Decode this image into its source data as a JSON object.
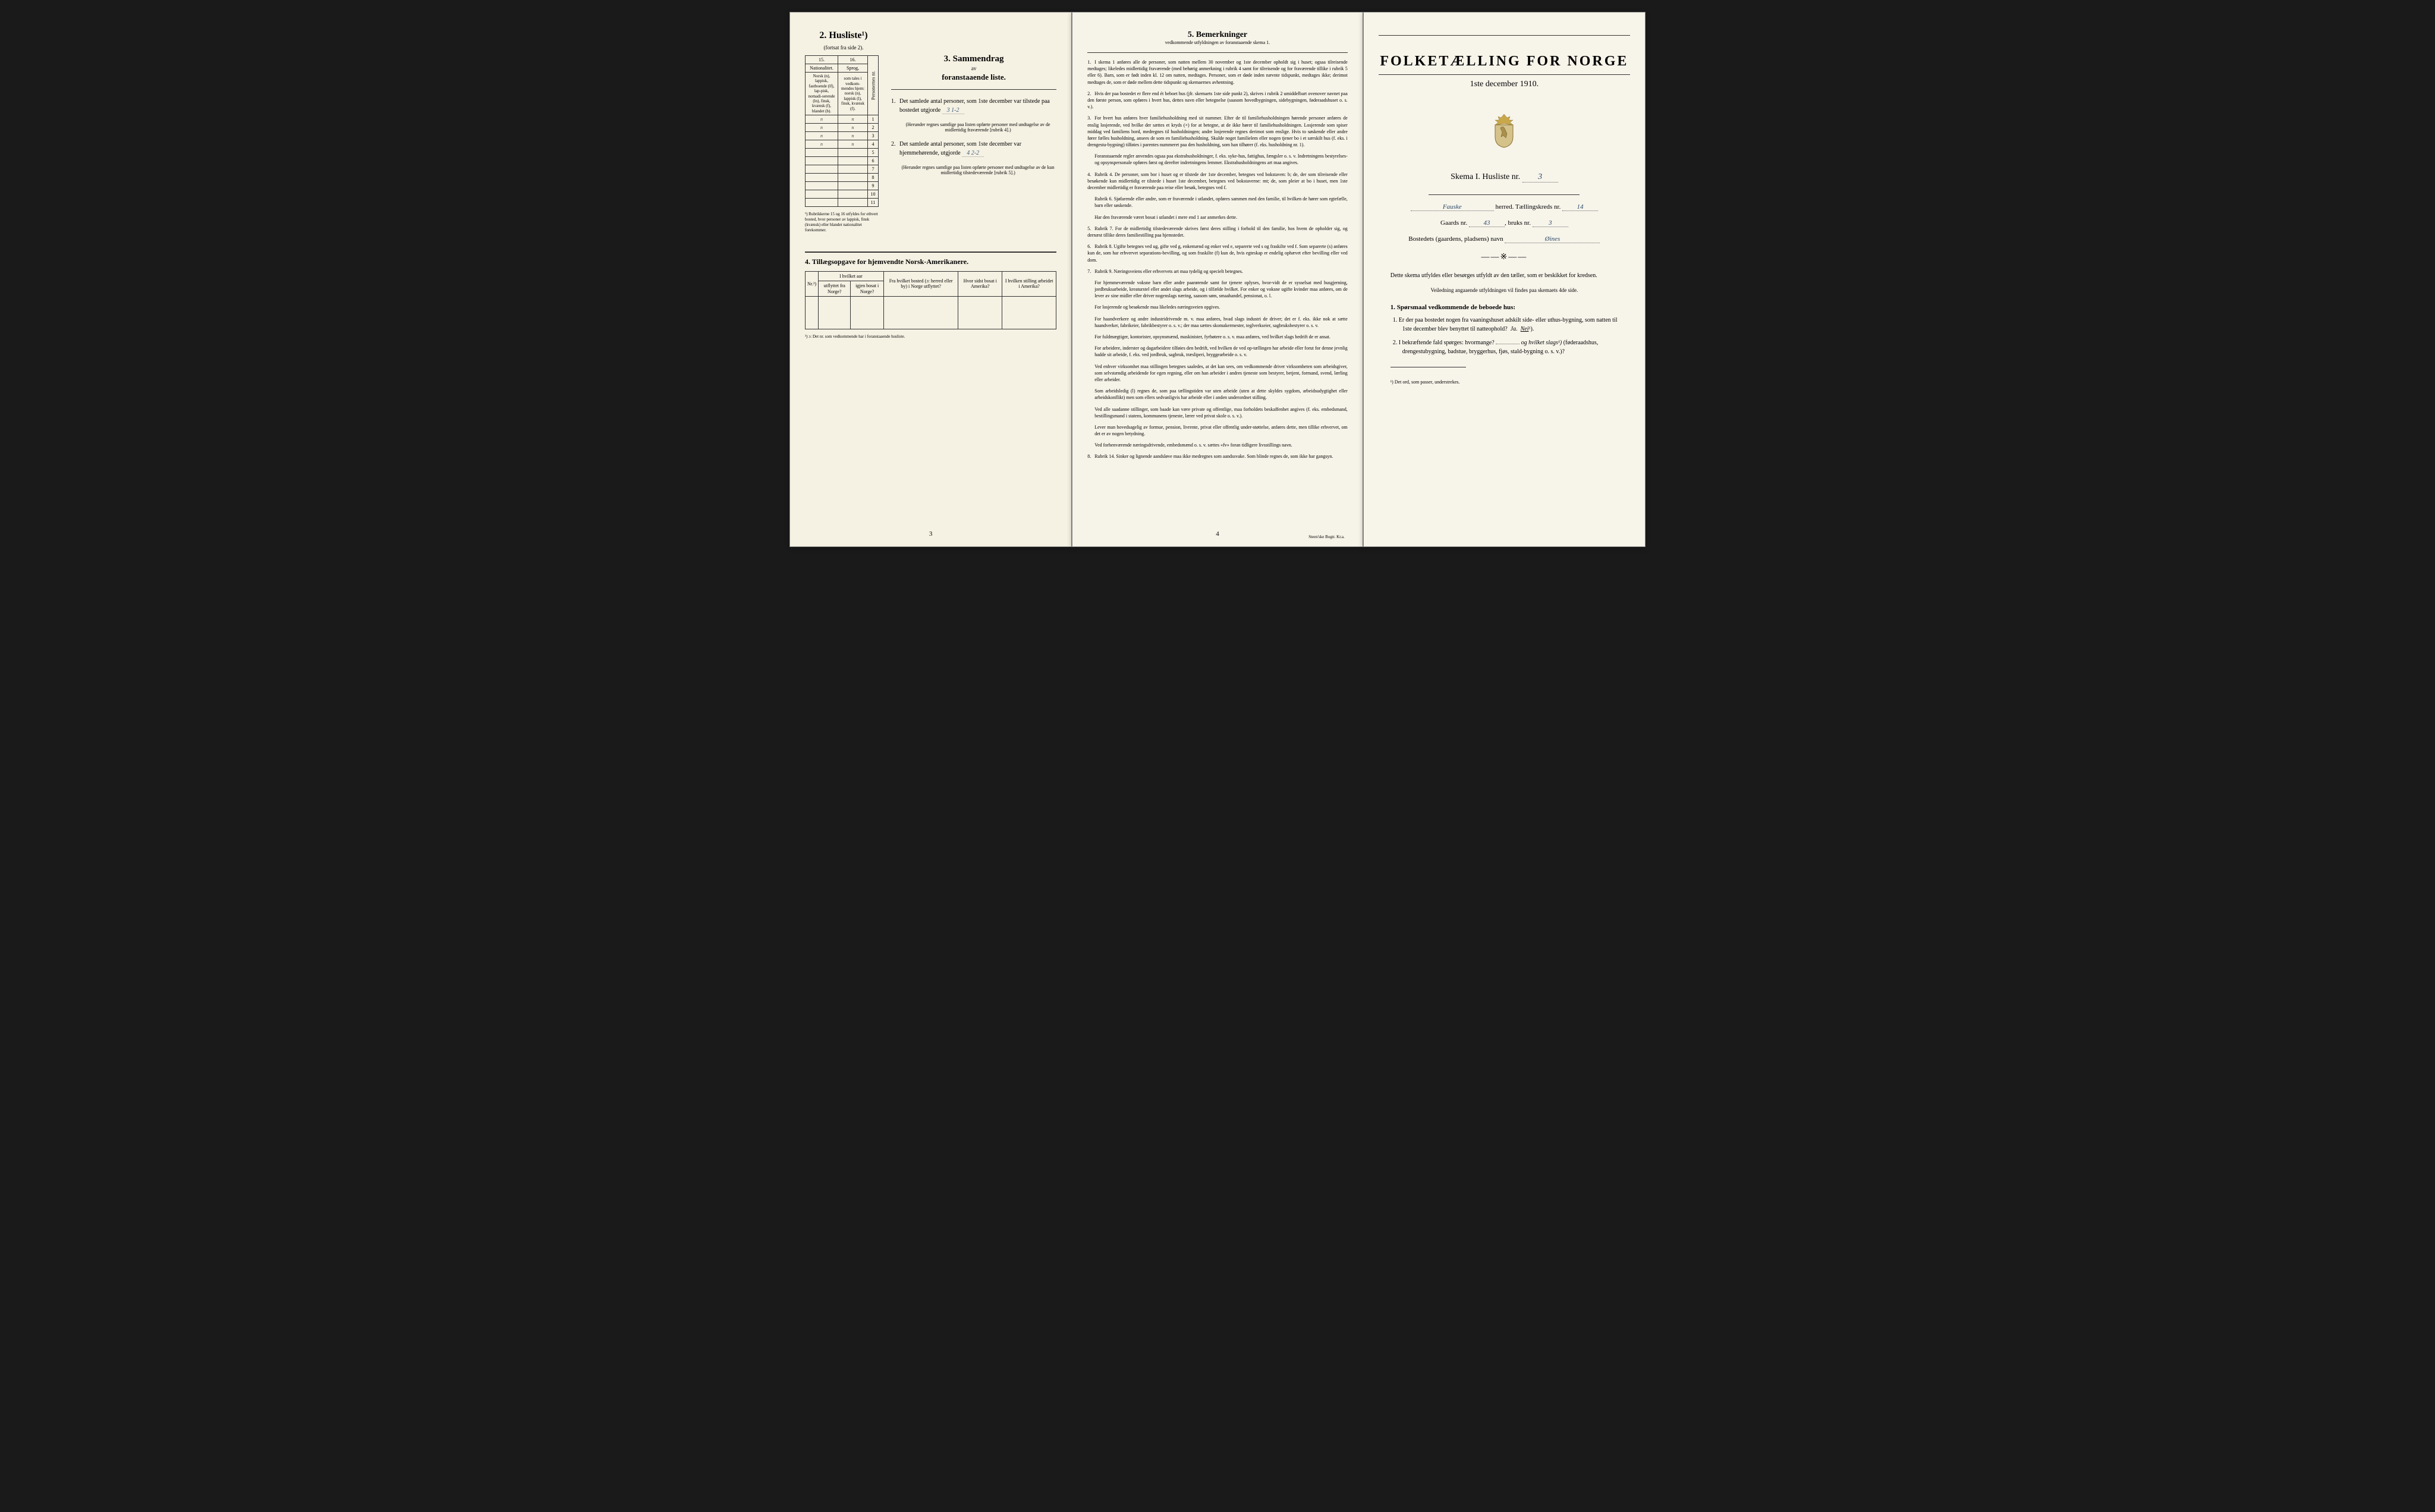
{
  "page1": {
    "section2_title": "2.  Husliste¹)",
    "section2_sub": "(fortsat fra side 2).",
    "col15": "15.",
    "col16": "16.",
    "nat_header": "Nationalitet.",
    "sprog_header": "Sprog,",
    "nat_text": "Norsk (n), lappisk, fastboende (lf), lap-pisk, nomadi-serende (ln), finsk, kvænsk (f), blandet (b).",
    "sprog_text": "som tales i vedkom-mendes hjem: norsk (n), lappisk (l), finsk, kvænsk (f).",
    "pers_label": "Personernes nr.",
    "cells": [
      {
        "c1": "n",
        "c2": "n",
        "num": "1"
      },
      {
        "c1": "n",
        "c2": "n",
        "num": "2"
      },
      {
        "c1": "n",
        "c2": "n",
        "num": "3"
      },
      {
        "c1": "n",
        "c2": "n",
        "num": "4"
      },
      {
        "c1": "",
        "c2": "",
        "num": "5"
      },
      {
        "c1": "",
        "c2": "",
        "num": "6"
      },
      {
        "c1": "",
        "c2": "",
        "num": "7"
      },
      {
        "c1": "",
        "c2": "",
        "num": "8"
      },
      {
        "c1": "",
        "c2": "",
        "num": "9"
      },
      {
        "c1": "",
        "c2": "",
        "num": "10"
      },
      {
        "c1": "",
        "c2": "",
        "num": "11"
      }
    ],
    "footnote1": "¹) Rubrikkerne 15 og 16 utfyldes for ethvert bosted, hvor personer av lappisk, finsk (kvænsk) eller blandet nationalitet forekommer.",
    "section3_title": "3.  Sammendrag",
    "section3_av": "av",
    "section3_sub": "foranstaaende liste.",
    "item1_text": "Det samlede antal personer, som 1ste december var tilstede paa bostedet utgjorde",
    "item1_value": "3 1-2",
    "item1_note": "(Herunder regnes samtlige paa listen opførte personer med undtagelse av de midlertidig fraværende [rubrik 4].)",
    "item2_text": "Det samlede antal personer, som 1ste december var hjemmehørende, utgjorde",
    "item2_value": "4 2-2",
    "item2_note": "(Herunder regnes samtlige paa listen opførte personer med undtagelse av de kun midlertidig tilstedeværende [rubrik 5].)",
    "section4_title": "4.  Tillægsopgave for hjemvendte Norsk-Amerikanere.",
    "t_cols": [
      "Nr.²)",
      "I hvilket aar",
      "Fra hvilket bosted (ɔ: herred eller by) i Norge utflyttet?",
      "Hvor sidst bosat i Amerika?",
      "I hvilken stilling arbeidet i Amerika?"
    ],
    "t_subcols": [
      "utflyttet fra Norge?",
      "igjen bosat i Norge?"
    ],
    "footnote2": "²) ɔ: Det nr. som vedkommende har i foranstaaende husliste.",
    "page_num": "3"
  },
  "page2": {
    "title": "5.  Bemerkninger",
    "sub": "vedkommende utfyldningen av foranstaaende skema 1.",
    "rules": [
      "I skema 1 anføres alle de personer, som natten mellem 30 november og 1ste december opholdt sig i huset; ogsaa tilreisende medtages; likeledes midlertidig fraværende (med behørig anmerkning i rubrik 4 samt for tilreisende og for fraværende tillike i rubrik 5 eller 6). Barn, som er født inden kl. 12 om natten, medtages. Personer, som er døde inden nævnte tidspunkt, medtages ikke; derimot medtages de, som er døde mellem dette tidspunkt og skemaernes avhentning.",
      "Hvis der paa bostedet er flere end ét beboet hus (jfr. skemaets 1ste side punkt 2), skrives i rubrik 2 umiddelbart ovenover navnet paa den første person, som opføres i hvert hus, dettes navn eller betegnelse (saasom hovedbygningen, sidebygningen, føderaadshuset o. s. v.).",
      "For hvert hus anføres hver familiehusholdning med sit nummer. Efter de til familiehusholdningen hørende personer anføres de enslig losjerende, ved hvilke der sættes et kryds (×) for at betegne, at de ikke hører til familiehusholdningen. Losjerende som spiser middag ved familiens bord, medregnes til husholdningen; andre losjerende regnes derimot som enslige. Hvis to søskende eller andre fører fælles husholdning, ansees de som en familiehusholdning. Skulde noget familielem eller nogen tjener bo i et særskilt hus (f. eks. i drengestu-bygning) tilføies i parentes nummeret paa den husholdning, som han tilhører (f. eks. husholdning nr. 1).",
      "Rubrik 4. De personer, som bor i huset og er tilstede der 1ste december, betegnes ved bokstaven: b; de, der som tilreisende eller besøkende kun midlertidig er tilstede i huset 1ste december, betegnes ved bokstaverne: mt; de, som pleier at bo i huset, men 1ste december midlertidig er fraværende paa reise eller besøk, betegnes ved f.",
      "Rubrik 7. For de midlertidig tilstedeværende skrives først deres stilling i forhold til den familie, hos hvem de opholder sig, og dernæst tillike deres familiestilling paa hjemstedet.",
      "Rubrik 8. Ugifte betegnes ved ug, gifte ved g, enkemænd og enker ved e, separerte ved s og fraskilte ved f. Som separerte (s) anføres kun de, som har erhvervet separations-bevilling, og som fraskilte (f) kun de, hvis egteskap er endelig ophævet efter bevilling eller ved dom.",
      "Rubrik 9. Næringsveiens eller erhvervets art maa tydelig og specielt betegnes.",
      "Rubrik 14. Sinker og lignende aandsløve maa ikke medregnes som aandssvake. Som blinde regnes de, som ikke har gangsyn."
    ],
    "rule3_extra": "Foranstaaende regler anvendes ogsaa paa ekstrahusholdninger, f. eks. syke-hus, fattighus, fængsler o. s. v. Indretningens bestyrelses- og opsynspersonale opføres først og derefter indretningens lemmer. Ekstrahusholdningens art maa angives.",
    "rule4_extra1": "Rubrik 6. Sjøfarende eller andre, som er fraværende i utlandet, opføres sammen med den familie, til hvilken de hører som egtefælle, barn eller søskende.",
    "rule4_extra2": "Har den fraværende været bosat i utlandet i mere end 1 aar anmerkes dette.",
    "rule7_extras": [
      "For hjemmeværende voksne barn eller andre paarørende samt for tjenere oplyses, hvor-vidt de er sysselsat med husgjerning, jordbruksarbeide, kreaturstel eller andet slags arbeide, og i tilfælde hvilket. For enker og voksne ugifte kvinder maa anføres, om de lever av sine midler eller driver nogenslags næring, saasom søm, smaahandel, pensionat, o. l.",
      "For losjerende og besøkende maa likeledes næringsveien opgives.",
      "For haandverkere og andre industridrivende m. v. maa anføres, hvad slags industri de driver; det er f. eks. ikke nok at sætte haandverker, fabrikeier, fabrikbestyrer o. s. v.; der maa sættes skomakermester, teglverkseier, sagbruksbestyrer o. s. v.",
      "For fuldmægtiger, kontorister, opsynsmænd, maskinister, fyrbøtere o. s. v. maa anføres, ved hvilket slags bedrift de er ansat.",
      "For arbeidere, inderster og dagarbeidere tilføies den bedrift, ved hvilken de ved op-tællingen har arbeide eller forut for denne jevnlig hadde sit arbeide, f. eks. ved jordbruk, sagbruk, træsliperi, bryggearbeide o. s. v.",
      "Ved enhver virksomhet maa stillingen betegnes saaledes, at det kan sees, om vedkommende driver virksomheten som arbeidsgiver, som selvstændig arbeidende for egen regning, eller om han arbeider i andres tjeneste som bestyrer, betjent, formand, svend, lærling eller arbeider.",
      "Som arbeidsledig (l) regnes de, som paa tællingstiden var uten arbeide (uten at dette skyldes sygdom, arbeidsudygtighet eller arbeidskonflikt) men som ellers sedvanligvis har arbeide eller i anden underordnet stilling.",
      "Ved alle saadanne stillinger, som baade kan være private og offentlige, maa forholdets beskaffenhet angives (f. eks. embedsmand, bestillingsmand i statens, kommunens tjeneste, lærer ved privat skole o. s. v.).",
      "Lever man hovedsagelig av formue, pension, livrente, privat eller offentlig under-støttelse, anføres dette, men tillike erhvervet, om det er av nogen betydning.",
      "Ved forhenværende næringsdrivende, embedsmænd o. s. v. sættes «fv» foran tidligere livsstillings navn."
    ],
    "page_num": "4",
    "printer": "Steen'ske Bogtr. Kr.a."
  },
  "page3": {
    "title": "FOLKETÆLLING FOR NORGE",
    "date": "1ste december 1910.",
    "skema": "Skema I.  Husliste nr.",
    "skema_val": "3",
    "herred_label": "herred.  Tællingskreds nr.",
    "herred_val": "Fauske",
    "kreds_val": "14",
    "gaards_label": "Gaards nr.",
    "gaards_val": "43",
    "bruks_label": "bruks nr.",
    "bruks_val": "3",
    "bosted_label": "Bostedets (gaardens, pladsens) navn",
    "bosted_val": "Øines",
    "ornament": "——※——",
    "intro": "Dette skema utfyldes eller besørges utfyldt av den tæller, som er beskikket for kredsen.",
    "intro_sub": "Veiledning angaaende utfyldningen vil findes paa skemaets 4de side.",
    "q_header": "1. Spørsmaal vedkommende de beboede hus:",
    "q1": "1. Er der paa bostedet nogen fra vaaningshuset adskilt side- eller uthus-bygning, som natten til 1ste december blev benyttet til natteophold?",
    "q1_ja": "Ja.",
    "q1_nei": "Nei",
    "q1_sup": "¹).",
    "q2": "2. I bekræftende fald spørges: hvormange?",
    "q2_mid": "og hvilket slags¹)",
    "q2_tail": "(føderaadshus, drengestubygning, badstue, bryggerhus, fjøs, stald-bygning o. s. v.)?",
    "footnote": "¹) Det ord, som passer, understrekes."
  },
  "colors": {
    "paper": "#f5f1e3",
    "ink": "#2a2a2a",
    "handwriting": "#2a4a6a",
    "border": "#333333"
  }
}
